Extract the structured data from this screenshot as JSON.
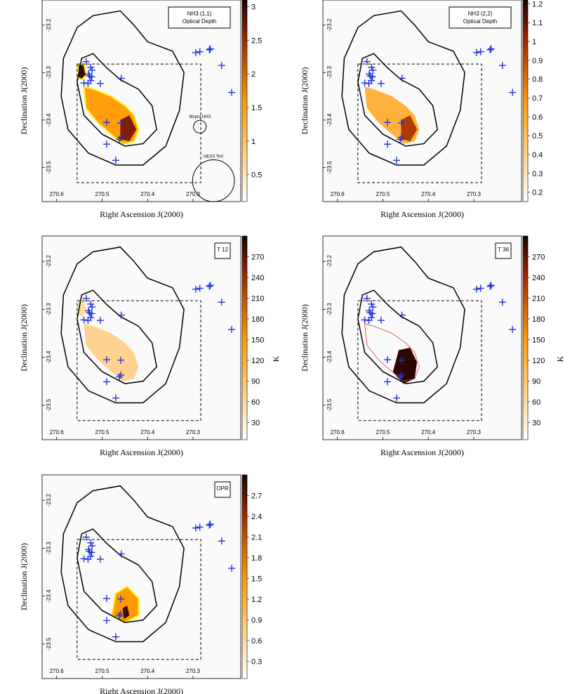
{
  "colors": {
    "accent_cross": "#2233dd",
    "contour": "#000000",
    "cmap_low": "#ffffff",
    "cmap_mid": "#ff9900",
    "cmap_high": "#1a0000",
    "red_contour": "#e04040",
    "yellow": "#ffee00"
  },
  "panels": [
    {
      "id": "p1",
      "label_lines": [
        "NH3 (1,1)",
        "Optical Depth"
      ],
      "colorbar": {
        "ticks": [
          "3",
          "2.5",
          "2",
          "1.5",
          "1",
          "0.5"
        ],
        "values": [
          3,
          2.5,
          2,
          1.5,
          1,
          0.5
        ],
        "range": [
          0.1,
          3.1
        ]
      },
      "colorbar_unit": "",
      "annotations": [
        "Mopra NH3",
        "HESS TeV"
      ]
    },
    {
      "id": "p2",
      "label_lines": [
        "NH3 (2,2)",
        "Optical Depth"
      ],
      "colorbar": {
        "ticks": [
          "1.2",
          "1.1",
          "1",
          "0.9",
          "0.8",
          "0.7",
          "0.6",
          "0.5",
          "0.4",
          "0.3",
          "0.2"
        ],
        "values": [
          1.2,
          1.1,
          1.0,
          0.9,
          0.8,
          0.7,
          0.6,
          0.5,
          0.4,
          0.3,
          0.2
        ],
        "range": [
          0.15,
          1.22
        ]
      },
      "colorbar_unit": "",
      "annotations": []
    },
    {
      "id": "p3",
      "label_lines": [
        "T 12"
      ],
      "colorbar": {
        "ticks": [
          "270",
          "240",
          "210",
          "180",
          "150",
          "120",
          "90",
          "60",
          "30"
        ],
        "values": [
          270,
          240,
          210,
          180,
          150,
          120,
          90,
          60,
          30
        ],
        "range": [
          5,
          300
        ]
      },
      "colorbar_unit": "K",
      "annotations": []
    },
    {
      "id": "p4",
      "label_lines": [
        "T 36"
      ],
      "colorbar": {
        "ticks": [
          "270",
          "240",
          "210",
          "180",
          "150",
          "120",
          "90",
          "60",
          "30"
        ],
        "values": [
          270,
          240,
          210,
          180,
          150,
          120,
          90,
          60,
          30
        ],
        "range": [
          5,
          300
        ]
      },
      "colorbar_unit": "K",
      "annotations": []
    },
    {
      "id": "p5",
      "label_lines": [
        "OPR"
      ],
      "colorbar": {
        "ticks": [
          "2.7",
          "2.4",
          "2.1",
          "1.8",
          "1.5",
          "1.2",
          "0.9",
          "0.6",
          "0.3"
        ],
        "values": [
          2.7,
          2.4,
          2.1,
          1.8,
          1.5,
          1.2,
          0.9,
          0.6,
          0.3
        ],
        "range": [
          0.05,
          3.0
        ]
      },
      "colorbar_unit": "",
      "annotations": []
    }
  ],
  "axes": {
    "xlabel": "Right Ascension J(2000)",
    "ylabel": "Declination J(2000)",
    "x_ticks": [
      "270.6",
      "270.5",
      "270.4",
      "270.3"
    ],
    "x_values": [
      270.6,
      270.5,
      270.4,
      270.3
    ],
    "y_ticks": [
      "-23.2",
      "-23.3",
      "-23.4",
      "-23.5"
    ],
    "y_values": [
      -23.2,
      -23.3,
      -23.4,
      -23.5
    ],
    "xlim": [
      270.632,
      270.195
    ],
    "ylim": [
      -23.572,
      -23.147
    ]
  },
  "chart_data": {
    "type": "heatmap",
    "panels": 5,
    "xlabel": "Right Ascension J(2000)",
    "ylabel": "Declination J(2000)",
    "xlim": [
      270.632,
      270.195
    ],
    "ylim": [
      -23.572,
      -23.147
    ],
    "crosses": [
      [
        270.535,
        -23.277
      ],
      [
        270.525,
        -23.289
      ],
      [
        270.522,
        -23.295
      ],
      [
        270.53,
        -23.303
      ],
      [
        270.528,
        -23.307
      ],
      [
        270.523,
        -23.309
      ],
      [
        270.525,
        -23.317
      ],
      [
        270.531,
        -23.323
      ],
      [
        270.54,
        -23.322
      ],
      [
        270.504,
        -23.323
      ],
      [
        270.458,
        -23.312
      ],
      [
        270.294,
        -23.258
      ],
      [
        270.285,
        -23.256
      ],
      [
        270.264,
        -23.252
      ],
      [
        270.262,
        -23.25
      ],
      [
        270.237,
        -23.285
      ],
      [
        270.215,
        -23.342
      ],
      [
        270.49,
        -23.405
      ],
      [
        270.459,
        -23.406
      ],
      [
        270.459,
        -23.437
      ],
      [
        270.462,
        -23.441
      ],
      [
        270.49,
        -23.451
      ],
      [
        270.47,
        -23.485
      ]
    ],
    "dashed_box": {
      "ra": [
        270.555,
        270.283
      ],
      "dec": [
        -23.282,
        -23.532
      ]
    },
    "beams": [
      {
        "name": "Mopra NH3",
        "ra": 270.285,
        "dec": -23.414,
        "r_deg": 0.014
      },
      {
        "name": "HESS TeV",
        "ra": 270.255,
        "dec": -23.528,
        "r_deg": 0.046
      }
    ]
  }
}
